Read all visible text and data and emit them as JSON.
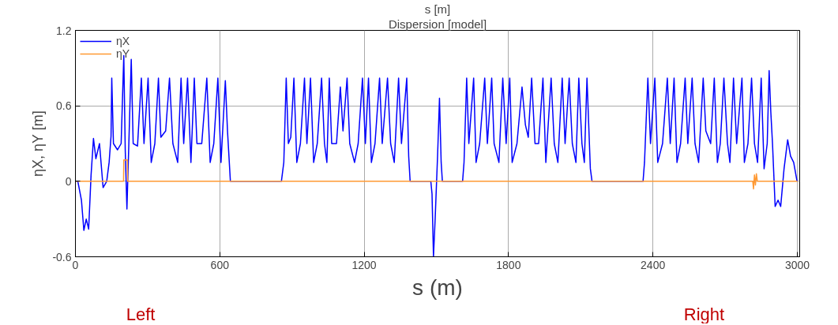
{
  "chart_data": {
    "type": "line",
    "title": "Dispersion [model]",
    "xlabel": "s (m)",
    "ylabel": "ηX, ηY [m]",
    "annotations": [
      "s [m]",
      "Left",
      "Right"
    ],
    "xlim": [
      0,
      3010
    ],
    "ylim": [
      -0.6,
      1.2
    ],
    "xticks": [
      0,
      600,
      1200,
      1800,
      2400,
      3000
    ],
    "yticks": [
      -0.6,
      0,
      0.6,
      1.2
    ],
    "grid": true,
    "legend": "top left",
    "line_style": "solid",
    "marker": "none",
    "series": [
      {
        "name": "ηX",
        "color": "#0000ff",
        "x": [
          0,
          10,
          25,
          35,
          45,
          55,
          65,
          75,
          85,
          100,
          115,
          130,
          140,
          148,
          151,
          158,
          175,
          190,
          201,
          207,
          214,
          222,
          232,
          240,
          258,
          274,
          285,
          302,
          315,
          330,
          345,
          355,
          375,
          391,
          405,
          425,
          439,
          450,
          466,
          480,
          494,
          505,
          525,
          546,
          560,
          575,
          592,
          605,
          623,
          632,
          644,
          856,
          866,
          876,
          885,
          895,
          908,
          920,
          935,
          952,
          962,
          977,
          990,
          1005,
          1023,
          1035,
          1045,
          1055,
          1065,
          1085,
          1101,
          1112,
          1129,
          1140,
          1160,
          1175,
          1193,
          1205,
          1218,
          1230,
          1245,
          1264,
          1275,
          1297,
          1310,
          1325,
          1343,
          1355,
          1377,
          1385,
          1391,
          1477,
          1482,
          1488,
          1495,
          1505,
          1513,
          1520,
          1525,
          1609,
          1615,
          1626,
          1635,
          1655,
          1665,
          1680,
          1701,
          1712,
          1730,
          1740,
          1760,
          1776,
          1790,
          1805,
          1815,
          1835,
          1856,
          1870,
          1882,
          1896,
          1910,
          1925,
          1943,
          1955,
          1977,
          1990,
          2005,
          2023,
          2035,
          2052,
          2065,
          2080,
          2092,
          2105,
          2115,
          2126,
          2140,
          2147,
          2359,
          2365,
          2379,
          2390,
          2408,
          2420,
          2440,
          2460,
          2472,
          2488,
          2500,
          2515,
          2534,
          2545,
          2563,
          2575,
          2590,
          2609,
          2620,
          2640,
          2655,
          2668,
          2680,
          2695,
          2710,
          2720,
          2735,
          2748,
          2770,
          2780,
          2795,
          2810,
          2822,
          2835,
          2850,
          2862,
          2875,
          2883,
          2890,
          2897,
          2908,
          2920,
          2931,
          2945,
          2960,
          2972,
          2985,
          2999
        ],
        "values": [
          0,
          0,
          -0.15,
          -0.39,
          -0.3,
          -0.38,
          0.05,
          0.34,
          0.18,
          0.3,
          -0.05,
          0.0,
          0.15,
          0.36,
          0.82,
          0.3,
          0.25,
          0.3,
          1.0,
          0.25,
          -0.22,
          0.3,
          0.97,
          0.3,
          0.28,
          0.82,
          0.3,
          0.82,
          0.15,
          0.3,
          0.82,
          0.35,
          0.4,
          0.82,
          0.3,
          0.15,
          0.82,
          0.3,
          0.82,
          0.15,
          0.82,
          0.3,
          0.3,
          0.82,
          0.15,
          0.3,
          0.82,
          0.15,
          0.8,
          0.4,
          0.0,
          0,
          0.15,
          0.82,
          0.3,
          0.35,
          0.82,
          0.15,
          0.3,
          0.82,
          0.3,
          0.82,
          0.15,
          0.3,
          0.82,
          0.3,
          0.15,
          0.82,
          0.3,
          0.3,
          0.75,
          0.4,
          0.82,
          0.3,
          0.15,
          0.3,
          0.82,
          0.3,
          0.82,
          0.15,
          0.3,
          0.82,
          0.3,
          0.82,
          0.3,
          0.15,
          0.82,
          0.3,
          0.82,
          0.2,
          0,
          0,
          -0.1,
          -0.6,
          -0.3,
          0.2,
          0.66,
          0.15,
          0,
          0,
          0.15,
          0.82,
          0.3,
          0.82,
          0.15,
          0.3,
          0.82,
          0.3,
          0.82,
          0.3,
          0.15,
          0.82,
          0.3,
          0.82,
          0.15,
          0.3,
          0.75,
          0.45,
          0.35,
          0.82,
          0.3,
          0.3,
          0.82,
          0.15,
          0.82,
          0.3,
          0.15,
          0.82,
          0.3,
          0.82,
          0.3,
          0.15,
          0.82,
          0.3,
          0.15,
          0.82,
          0.1,
          0,
          0,
          0.15,
          0.82,
          0.3,
          0.82,
          0.15,
          0.3,
          0.82,
          0.3,
          0.82,
          0.15,
          0.3,
          0.82,
          0.3,
          0.82,
          0.3,
          0.15,
          0.82,
          0.4,
          0.3,
          0.82,
          0.15,
          0.3,
          0.82,
          0.3,
          0.15,
          0.82,
          0.3,
          0.82,
          0.15,
          0.3,
          0.82,
          0.3,
          0.15,
          0.82,
          0.1,
          0.3,
          0.88,
          0.55,
          0.3,
          -0.2,
          -0.15,
          -0.2,
          0.1,
          0.33,
          0.2,
          0.15,
          0
        ]
      },
      {
        "name": "ηY",
        "color": "#ff9933",
        "x": [
          0,
          200,
          201,
          216,
          217,
          2815,
          2818,
          2822,
          2826,
          2830,
          2834,
          3000
        ],
        "values": [
          0,
          0,
          0.17,
          0.17,
          0,
          0,
          -0.06,
          0.05,
          -0.03,
          0.06,
          0,
          0
        ]
      }
    ]
  }
}
